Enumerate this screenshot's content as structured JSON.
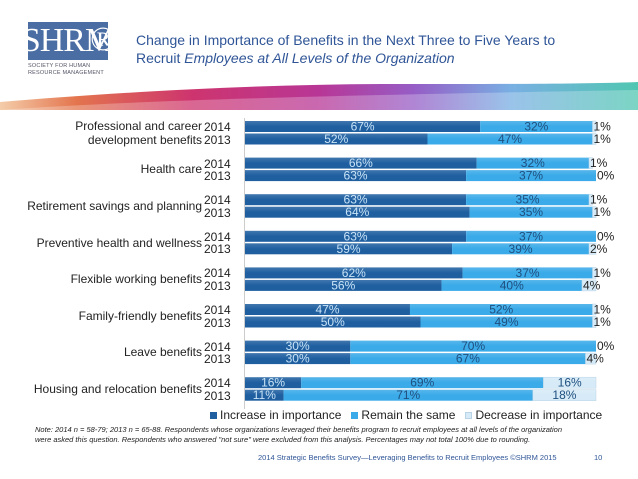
{
  "header": {
    "logo_text": "SHRM",
    "logo_subtitle_line1": "SOCIETY FOR HUMAN",
    "logo_subtitle_line2": "RESOURCE MANAGEMENT",
    "logo_registered": "®",
    "title_line1": "Change in Importance of Benefits in the Next Three to Five Years to",
    "title_line2_plain": "Recruit ",
    "title_line2_italic": "Employees at All Levels of the Organization"
  },
  "colors": {
    "increase": "#1f5fa0",
    "remain": "#3aaae8",
    "decrease": "#d6ebf7",
    "title": "#2f5597"
  },
  "chart_data": {
    "type": "bar",
    "orientation": "horizontal",
    "stacked": true,
    "title": "Change in Importance of Benefits in the Next Three to Five Years to Recruit Employees at All Levels of the Organization",
    "xlabel": "",
    "ylabel": "",
    "xlim": [
      0,
      100
    ],
    "grid": false,
    "legend_position": "bottom",
    "series_names": [
      "Increase in importance",
      "Remain the same",
      "Decrease in importance"
    ],
    "categories": [
      {
        "name": "Professional and career development benefits",
        "label_lines": [
          "Professional and career",
          "development benefits"
        ],
        "years": [
          {
            "year": "2014",
            "values": [
              67,
              32,
              1
            ]
          },
          {
            "year": "2013",
            "values": [
              52,
              47,
              1
            ]
          }
        ]
      },
      {
        "name": "Health care",
        "label_lines": [
          "Health care"
        ],
        "years": [
          {
            "year": "2014",
            "values": [
              66,
              32,
              1
            ]
          },
          {
            "year": "2013",
            "values": [
              63,
              37,
              0
            ]
          }
        ]
      },
      {
        "name": "Retirement savings and planning",
        "label_lines": [
          "Retirement savings and planning"
        ],
        "years": [
          {
            "year": "2014",
            "values": [
              63,
              35,
              1
            ]
          },
          {
            "year": "2013",
            "values": [
              64,
              35,
              1
            ]
          }
        ]
      },
      {
        "name": "Preventive health and wellness",
        "label_lines": [
          "Preventive health and wellness"
        ],
        "years": [
          {
            "year": "2014",
            "values": [
              63,
              37,
              0
            ]
          },
          {
            "year": "2013",
            "values": [
              59,
              39,
              2
            ]
          }
        ]
      },
      {
        "name": "Flexible working benefits",
        "label_lines": [
          "Flexible working benefits"
        ],
        "years": [
          {
            "year": "2014",
            "values": [
              62,
              37,
              1
            ]
          },
          {
            "year": "2013",
            "values": [
              56,
              40,
              4
            ]
          }
        ]
      },
      {
        "name": "Family-friendly benefits",
        "label_lines": [
          "Family-friendly benefits"
        ],
        "years": [
          {
            "year": "2014",
            "values": [
              47,
              52,
              1
            ]
          },
          {
            "year": "2013",
            "values": [
              50,
              49,
              1
            ]
          }
        ]
      },
      {
        "name": "Leave benefits",
        "label_lines": [
          "Leave benefits"
        ],
        "years": [
          {
            "year": "2014",
            "values": [
              30,
              70,
              0
            ]
          },
          {
            "year": "2013",
            "values": [
              30,
              67,
              4
            ]
          }
        ]
      },
      {
        "name": "Housing and relocation benefits",
        "label_lines": [
          "Housing and relocation benefits"
        ],
        "years": [
          {
            "year": "2014",
            "values": [
              16,
              69,
              16
            ]
          },
          {
            "year": "2013",
            "values": [
              11,
              71,
              18
            ]
          }
        ]
      }
    ]
  },
  "legend": {
    "items": [
      "Increase in importance",
      "Remain the same",
      "Decrease in importance"
    ]
  },
  "note": "Note: 2014 n = 58-79; 2013 n = 65-88. Respondents whose organizations leveraged their benefits program to recruit employees at all levels of the organization were asked this question. Respondents who answered \"not sure\" were excluded from this analysis. Percentages may not total 100% due to rounding.",
  "footer": {
    "source": "2014 Strategic Benefits Survey—Leveraging Benefits to Recruit Employees ©SHRM 2015",
    "page_number": "10"
  }
}
